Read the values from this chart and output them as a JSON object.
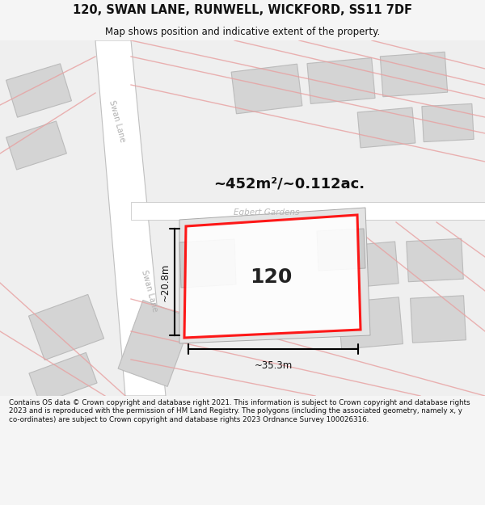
{
  "title": "120, SWAN LANE, RUNWELL, WICKFORD, SS11 7DF",
  "subtitle": "Map shows position and indicative extent of the property.",
  "area_label": "~452m²/~0.112ac.",
  "width_label": "~35.3m",
  "height_label": "~20.8m",
  "property_number": "120",
  "street_label1": "Swan Lane",
  "street_label2": "Swan Lane",
  "road_label": "Egbert Gardens",
  "footer": "Contains OS data © Crown copyright and database right 2021. This information is subject to Crown copyright and database rights 2023 and is reproduced with the permission of HM Land Registry. The polygons (including the associated geometry, namely x, y co-ordinates) are subject to Crown copyright and database rights 2023 Ordnance Survey 100026316.",
  "bg_color": "#f5f5f5",
  "map_bg": "#efefef",
  "road_fill": "#ffffff",
  "road_outline": "#cccccc",
  "pink_road": "#e8a0a0",
  "property_outline": "#ff0000",
  "property_fill": "#ffffff",
  "building_fill": "#d4d4d4",
  "building_outline": "#bbbbbb",
  "figsize": [
    6.0,
    6.25
  ],
  "dpi": 100
}
